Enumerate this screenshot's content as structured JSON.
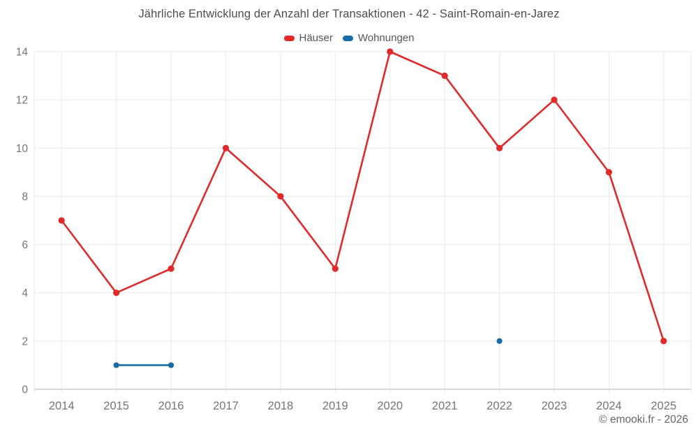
{
  "title": "Jährliche Entwicklung der Anzahl der Transaktionen - 42 - Saint-Romain-en-Jarez",
  "footer": "© emooki.fr - 2026",
  "legend": {
    "items": [
      {
        "label": "Häuser",
        "color": "#e02a2a"
      },
      {
        "label": "Wohnungen",
        "color": "#1a6ca6"
      }
    ]
  },
  "colors": {
    "series_red": "#e02a2a",
    "series_blue": "#1a6ca6",
    "grid": "#e9e9e9",
    "axis_border": "#cccccc",
    "tick_label": "#757575",
    "title_text": "#4d4d4d",
    "legend_text": "#555555",
    "footer_text": "#666666",
    "background": "#ffffff"
  },
  "chart_data": {
    "type": "line",
    "title": "Jährliche Entwicklung der Anzahl der Transaktionen - 42 - Saint-Romain-en-Jarez",
    "categories": [
      "2014",
      "2015",
      "2016",
      "2017",
      "2018",
      "2019",
      "2020",
      "2021",
      "2022",
      "2023",
      "2024",
      "2025"
    ],
    "series": [
      {
        "name": "Häuser",
        "color": "#e02a2a",
        "values": [
          7,
          4,
          5,
          10,
          8,
          5,
          14,
          13,
          10,
          12,
          9,
          2
        ]
      },
      {
        "name": "Wohnungen",
        "color": "#1a6ca6",
        "values": [
          null,
          1,
          1,
          null,
          null,
          null,
          null,
          null,
          2,
          null,
          null,
          null
        ]
      }
    ],
    "xlabel": "",
    "ylabel": "",
    "ylim": [
      0,
      14
    ],
    "ytick_step": 2,
    "grid": true,
    "legend_position": "top"
  }
}
